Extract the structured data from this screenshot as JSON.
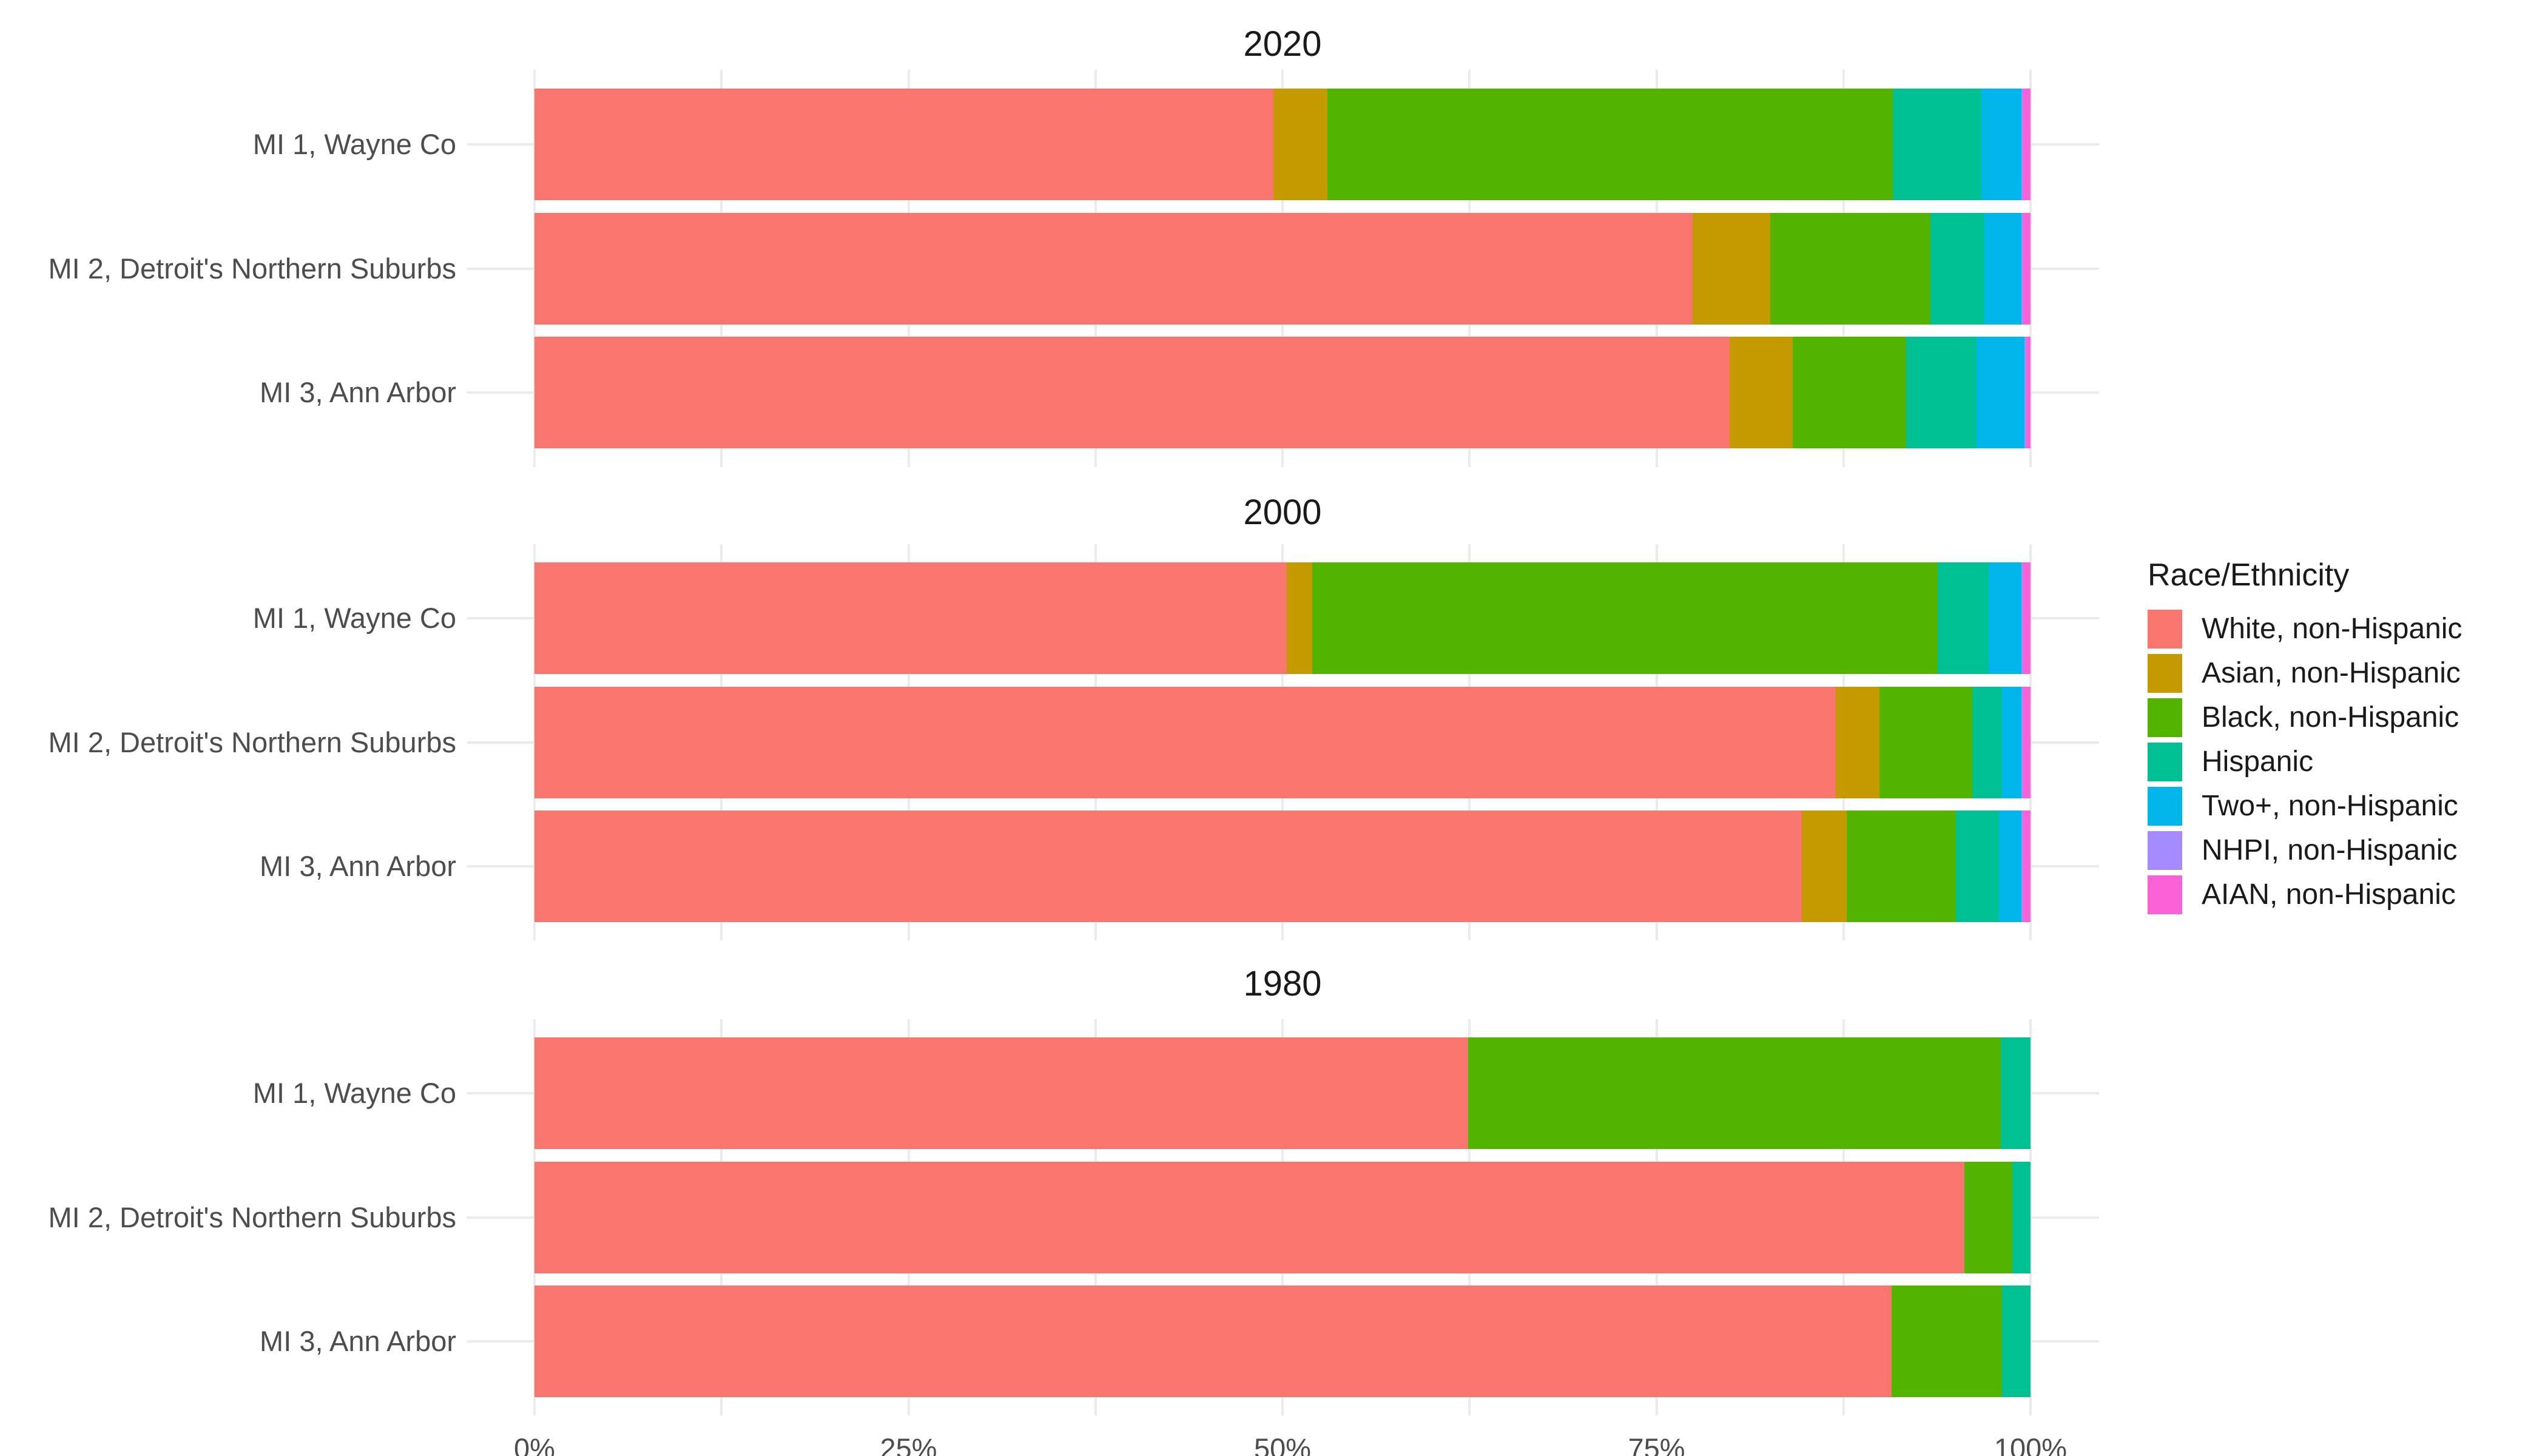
{
  "chart_data": {
    "type": "bar",
    "orientation": "horizontal",
    "stacked": true,
    "units": "percent of population",
    "legend": {
      "title": "Race/Ethnicity",
      "position": "right"
    },
    "series": [
      {
        "name": "White, non-Hispanic",
        "color": "#F8766D"
      },
      {
        "name": "Asian, non-Hispanic",
        "color": "#C49A00"
      },
      {
        "name": "Black, non-Hispanic",
        "color": "#53B400"
      },
      {
        "name": "Hispanic",
        "color": "#00C094"
      },
      {
        "name": "Two+, non-Hispanic",
        "color": "#00B6EB"
      },
      {
        "name": "NHPI, non-Hispanic",
        "color": "#A58AFF"
      },
      {
        "name": "AIAN, non-Hispanic",
        "color": "#FB61D7"
      }
    ],
    "categories": [
      "MI 1, Wayne Co",
      "MI 2, Detroit's Northern Suburbs",
      "MI 3, Ann Arbor"
    ],
    "facets": [
      {
        "label": "2020",
        "bars": [
          {
            "category": "MI 1, Wayne Co",
            "values": [
              49.4,
              3.6,
              37.8,
              5.9,
              2.7,
              0.1,
              0.5
            ]
          },
          {
            "category": "MI 2, Detroit's Northern Suburbs",
            "values": [
              77.4,
              5.2,
              10.7,
              3.6,
              2.5,
              0.1,
              0.5
            ]
          },
          {
            "category": "MI 3, Ann Arbor",
            "values": [
              79.9,
              4.2,
              7.6,
              4.7,
              3.2,
              0.1,
              0.3
            ]
          }
        ]
      },
      {
        "label": "2000",
        "bars": [
          {
            "category": "MI 1, Wayne Co",
            "values": [
              50.3,
              1.7,
              41.8,
              3.4,
              2.2,
              0.1,
              0.5
            ]
          },
          {
            "category": "MI 2, Detroit's Northern Suburbs",
            "values": [
              87.0,
              2.9,
              6.2,
              2.0,
              1.3,
              0.1,
              0.5
            ]
          },
          {
            "category": "MI 3, Ann Arbor",
            "values": [
              84.7,
              3.0,
              7.3,
              2.9,
              1.5,
              0.1,
              0.5
            ]
          }
        ]
      },
      {
        "label": "1980",
        "bars": [
          {
            "category": "MI 1, Wayne Co",
            "values": [
              62.4,
              0.0,
              35.6,
              2.0,
              0.0,
              0.0,
              0.0
            ]
          },
          {
            "category": "MI 2, Detroit's Northern Suburbs",
            "values": [
              95.6,
              0.0,
              3.2,
              1.2,
              0.0,
              0.0,
              0.0
            ]
          },
          {
            "category": "MI 3, Ann Arbor",
            "values": [
              90.7,
              0.0,
              7.4,
              1.9,
              0.0,
              0.0,
              0.0
            ]
          }
        ]
      }
    ],
    "x_axis": {
      "tick_labels": [
        "0%",
        "25%",
        "50%",
        "75%",
        "100%"
      ],
      "range_percent": [
        0,
        100
      ],
      "minor_gridline_step_percent": 12.5,
      "grid": "on"
    },
    "style_colors": {
      "axis_text": "#4D4D4D",
      "facet_title_text": "#1A1A1A",
      "gridline": "#EBEBEB",
      "background": "#FFFFFF"
    }
  }
}
